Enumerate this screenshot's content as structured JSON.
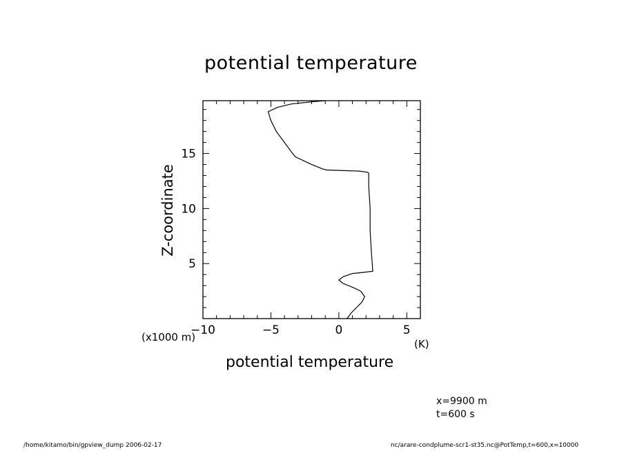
{
  "chart_data": {
    "type": "line",
    "title": "potential temperature",
    "xlabel": "potential temperature",
    "xunit": "(K)",
    "ylabel": "Z-coordinate",
    "yunit": "(x1000 m)",
    "xlim": [
      -10,
      6
    ],
    "ylim": [
      0,
      19.8
    ],
    "xticks": [
      -10,
      -5,
      0,
      5
    ],
    "xtick_labels": [
      "−10",
      "−5",
      "0",
      "5"
    ],
    "yticks": [
      5,
      10,
      15
    ],
    "ytick_labels": [
      "5",
      "10",
      "15"
    ],
    "grid": false,
    "series": [
      {
        "x": [
          0.6,
          0.9,
          1.3,
          1.7,
          1.9,
          1.6,
          1.1,
          0.3,
          0.0,
          0.3,
          1.0,
          1.8,
          2.5,
          2.4,
          2.3,
          2.3,
          2.2,
          2.2,
          2.1,
          1.5,
          -0.9,
          -1.2,
          -2.0,
          -3.2,
          -3.4,
          -4.0,
          -4.6,
          -5.0,
          -5.2,
          -4.5,
          -3.5,
          -2.0,
          -1.0
        ],
        "y": [
          0.0,
          0.5,
          1.0,
          1.5,
          2.0,
          2.5,
          2.8,
          3.2,
          3.5,
          3.8,
          4.1,
          4.2,
          4.3,
          6.0,
          8.0,
          10.0,
          12.0,
          13.2,
          13.3,
          13.4,
          13.5,
          13.6,
          14.0,
          14.7,
          15.0,
          16.0,
          17.0,
          18.0,
          18.8,
          19.2,
          19.5,
          19.7,
          19.8
        ]
      }
    ]
  },
  "info": {
    "x_pos": "x=9900  m",
    "time": "t=600  s"
  },
  "footer": {
    "left": "/home/kitamo/bin/gpview_dump   2006-02-17",
    "right": "nc/arare-condplume-scr1-st35.nc@PotTemp,t=600,x=10000"
  }
}
